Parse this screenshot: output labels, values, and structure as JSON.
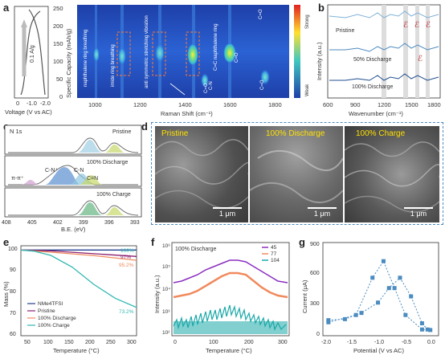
{
  "panels": {
    "a": {
      "label": "a",
      "gcd_xlabel": "Voltage (V vs AC)",
      "gcd_xticks": [
        "0",
        "-1.0",
        "-2.0"
      ],
      "rate_label": "0.1 A/g",
      "ylabel": "Specific Capacity (mAh/g)",
      "yticks": [
        "0",
        "50",
        "100",
        "150",
        "200",
        "250"
      ],
      "xlabel": "Raman Shift (cm⁻¹)",
      "xticks": [
        "1000",
        "1200",
        "1400",
        "1600",
        "1800"
      ],
      "colorbar_top": "Strong",
      "colorbar_bottom": "Weak",
      "annotations": [
        "naphthalene ring breathing",
        "imide ring breathing",
        "anti symmetric stretching vibration",
        "C=C naphthalene ring"
      ],
      "co_labels": [
        "C=O",
        "C=O",
        "C=O",
        "C=O"
      ],
      "cn_label": "C-N"
    },
    "b": {
      "label": "b",
      "ylabel": "Intensity (a.u.)",
      "xlabel": "Wavenumber (cm⁻¹)",
      "xticks": [
        "600",
        "900",
        "1200",
        "1500",
        "1800"
      ],
      "trace_labels": [
        "Pristine",
        "50% Discharge",
        "100% Discharge"
      ]
    },
    "c": {
      "label": "c",
      "title": "N 1s",
      "xlabel": "B.E. (eV)",
      "xticks": [
        "408",
        "405",
        "402",
        "399",
        "396",
        "393"
      ],
      "sub": [
        {
          "name": "Pristine",
          "peaks": []
        },
        {
          "name": "100% Discharge",
          "peaks": [
            "C-N⁺",
            "C-N",
            "C=N",
            "π-π⁺"
          ]
        },
        {
          "name": "100% Charge",
          "peaks": []
        }
      ]
    },
    "d": {
      "label": "d",
      "images": [
        {
          "title": "Pristine",
          "scale": "1 μm"
        },
        {
          "title": "100% Discharge",
          "scale": "1 μm"
        },
        {
          "title": "100% Charge",
          "scale": "1 μm"
        }
      ]
    },
    "e": {
      "label": "e",
      "ylabel": "Mass (%)",
      "xlabel": "Temperature (°C)",
      "xticks": [
        "50",
        "100",
        "150",
        "200",
        "250",
        "300"
      ],
      "yticks": [
        "60",
        "70",
        "80",
        "90",
        "100"
      ],
      "end_labels": [
        "100%",
        "97%",
        "95.2%",
        "73.2%"
      ],
      "legend": [
        "NMe4TFSI",
        "Pristine",
        "100% Discharge",
        "100% Charge"
      ]
    },
    "f": {
      "label": "f",
      "title": "100% Discharge",
      "ylabel": "Intensity (a.u.)",
      "xlabel": "Temperature (°C)",
      "xticks": [
        "0",
        "100",
        "200",
        "300"
      ],
      "yticks": [
        "10²",
        "10³",
        "10⁴",
        "10⁵",
        "10⁶"
      ],
      "legend": [
        "45",
        "77",
        "104"
      ]
    },
    "g": {
      "label": "g",
      "ylabel": "Current (μA)",
      "xlabel": "Potential (V vs AC)",
      "xticks": [
        "-2.0",
        "-1.5",
        "-1.0",
        "-0.5",
        "0.0"
      ],
      "yticks": [
        "0",
        "300",
        "600",
        "900"
      ]
    }
  },
  "chart_data": [
    {
      "id": "e",
      "type": "line",
      "xlabel": "Temperature (°C)",
      "ylabel": "Mass (%)",
      "xlim": [
        30,
        300
      ],
      "ylim": [
        60,
        102
      ],
      "series": [
        {
          "name": "NMe4TFSI",
          "color": "#1f3f8f",
          "x": [
            30,
            100,
            200,
            300
          ],
          "y": [
            100,
            100,
            100,
            100
          ]
        },
        {
          "name": "Pristine",
          "color": "#8b1f6f",
          "x": [
            30,
            100,
            200,
            300
          ],
          "y": [
            100,
            99.6,
            98.3,
            97
          ]
        },
        {
          "name": "100% Discharge",
          "color": "#f08a5d",
          "x": [
            30,
            100,
            200,
            300
          ],
          "y": [
            100,
            99.0,
            97.4,
            95.2
          ]
        },
        {
          "name": "100% Charge",
          "color": "#30b8b0",
          "x": [
            30,
            60,
            100,
            150,
            200,
            250,
            300
          ],
          "y": [
            100,
            99.5,
            97.5,
            92,
            84,
            77.5,
            73.2
          ]
        }
      ]
    },
    {
      "id": "g",
      "type": "scatter",
      "xlabel": "Potential (V vs AC)",
      "ylabel": "Current (μA)",
      "xlim": [
        -2.0,
        0.1
      ],
      "ylim": [
        0,
        900
      ],
      "series": [
        {
          "name": "loop_a",
          "color": "#4a8bc0",
          "x": [
            -1.9,
            -1.6,
            -1.3,
            -1.0,
            -0.8,
            -0.6,
            -0.4,
            -0.2,
            -0.1
          ],
          "y": [
            150,
            160,
            220,
            320,
            460,
            560,
            380,
            120,
            60
          ]
        },
        {
          "name": "loop_b",
          "color": "#4a8bc0",
          "x": [
            -1.9,
            -1.4,
            -1.1,
            -0.9,
            -0.7,
            -0.5,
            -0.2,
            -0.05
          ],
          "y": [
            130,
            200,
            560,
            720,
            460,
            200,
            60,
            55
          ]
        }
      ]
    }
  ]
}
